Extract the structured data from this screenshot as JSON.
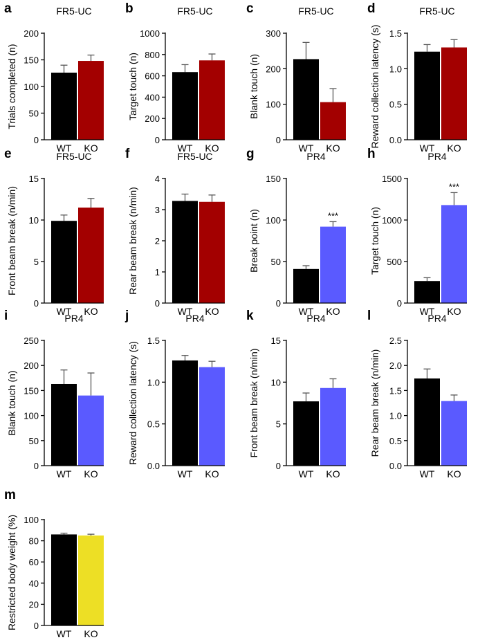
{
  "figure": {
    "colors": {
      "wt": "#000000",
      "fr5_ko": "#a30000",
      "pr4_ko": "#5a5aff",
      "weight_ko": "#eddf25",
      "axis": "#000000"
    },
    "significance_marker": "***"
  },
  "chart_data": [
    {
      "id": "a",
      "letter": "a",
      "type": "bar",
      "title": "FR5-UC",
      "ylabel": "Trials completed (n)",
      "categories": [
        "WT",
        "KO"
      ],
      "values": [
        126,
        148
      ],
      "errors": [
        14,
        11
      ],
      "ylim": [
        0,
        200
      ],
      "yticks": [
        0,
        50,
        100,
        150,
        200
      ],
      "significance": [
        "",
        ""
      ],
      "colors": [
        "#000000",
        "#a30000"
      ]
    },
    {
      "id": "b",
      "letter": "b",
      "type": "bar",
      "title": "FR5-UC",
      "ylabel": "Target touch (n)",
      "categories": [
        "WT",
        "KO"
      ],
      "values": [
        635,
        745
      ],
      "errors": [
        70,
        60
      ],
      "ylim": [
        0,
        1000
      ],
      "yticks": [
        0,
        200,
        400,
        600,
        800,
        1000
      ],
      "significance": [
        "",
        ""
      ],
      "colors": [
        "#000000",
        "#a30000"
      ]
    },
    {
      "id": "c",
      "letter": "c",
      "type": "bar",
      "title": "FR5-UC",
      "ylabel": "Blank touch (n)",
      "categories": [
        "WT",
        "KO"
      ],
      "values": [
        227,
        106
      ],
      "errors": [
        47,
        38
      ],
      "ylim": [
        0,
        300
      ],
      "yticks": [
        0,
        100,
        200,
        300
      ],
      "significance": [
        "",
        ""
      ],
      "colors": [
        "#000000",
        "#a30000"
      ]
    },
    {
      "id": "d",
      "letter": "d",
      "type": "bar",
      "title": "FR5-UC",
      "ylabel": "Reward collection latency (s)",
      "categories": [
        "WT",
        "KO"
      ],
      "values": [
        1.24,
        1.3
      ],
      "errors": [
        0.1,
        0.11
      ],
      "ylim": [
        0,
        1.5
      ],
      "yticks": [
        0,
        0.5,
        1.0,
        1.5
      ],
      "significance": [
        "",
        ""
      ],
      "colors": [
        "#000000",
        "#a30000"
      ]
    },
    {
      "id": "e",
      "letter": "e",
      "type": "bar",
      "title": "FR5-UC",
      "ylabel": "Front beam break (n/min)",
      "categories": [
        "WT",
        "KO"
      ],
      "values": [
        9.9,
        11.5
      ],
      "errors": [
        0.7,
        1.1
      ],
      "ylim": [
        0,
        15
      ],
      "yticks": [
        0,
        5,
        10,
        15
      ],
      "significance": [
        "",
        ""
      ],
      "colors": [
        "#000000",
        "#a30000"
      ]
    },
    {
      "id": "f",
      "letter": "f",
      "type": "bar",
      "title": "FR5-UC",
      "ylabel": "Rear beam break (n/min)",
      "categories": [
        "WT",
        "KO"
      ],
      "values": [
        3.28,
        3.25
      ],
      "errors": [
        0.22,
        0.22
      ],
      "ylim": [
        0,
        4
      ],
      "yticks": [
        0,
        1,
        2,
        3,
        4
      ],
      "significance": [
        "",
        ""
      ],
      "colors": [
        "#000000",
        "#a30000"
      ]
    },
    {
      "id": "g",
      "letter": "g",
      "type": "bar",
      "title": "PR4",
      "ylabel": "Break point (n)",
      "categories": [
        "WT",
        "KO"
      ],
      "values": [
        41,
        92
      ],
      "errors": [
        4,
        6
      ],
      "ylim": [
        0,
        150
      ],
      "yticks": [
        0,
        50,
        100,
        150
      ],
      "significance": [
        "",
        "***"
      ],
      "colors": [
        "#000000",
        "#5a5aff"
      ]
    },
    {
      "id": "h",
      "letter": "h",
      "type": "bar",
      "title": "PR4",
      "ylabel": "Target touch (n)",
      "categories": [
        "WT",
        "KO"
      ],
      "values": [
        265,
        1180
      ],
      "errors": [
        40,
        150
      ],
      "ylim": [
        0,
        1500
      ],
      "yticks": [
        0,
        500,
        1000,
        1500
      ],
      "significance": [
        "",
        "***"
      ],
      "colors": [
        "#000000",
        "#5a5aff"
      ]
    },
    {
      "id": "i",
      "letter": "i",
      "type": "bar",
      "title": "PR4",
      "ylabel": "Blank touch (n)",
      "categories": [
        "WT",
        "KO"
      ],
      "values": [
        163,
        140
      ],
      "errors": [
        28,
        45
      ],
      "ylim": [
        0,
        250
      ],
      "yticks": [
        0,
        50,
        100,
        150,
        200,
        250
      ],
      "significance": [
        "",
        ""
      ],
      "colors": [
        "#000000",
        "#5a5aff"
      ]
    },
    {
      "id": "j",
      "letter": "j",
      "type": "bar",
      "title": "PR4",
      "ylabel": "Reward collection latency (s)",
      "categories": [
        "WT",
        "KO"
      ],
      "values": [
        1.26,
        1.18
      ],
      "errors": [
        0.06,
        0.07
      ],
      "ylim": [
        0,
        1.5
      ],
      "yticks": [
        0,
        0.5,
        1.0,
        1.5
      ],
      "significance": [
        "",
        ""
      ],
      "colors": [
        "#000000",
        "#5a5aff"
      ]
    },
    {
      "id": "k",
      "letter": "k",
      "type": "bar",
      "title": "PR4",
      "ylabel": "Front beam break (n/min)",
      "categories": [
        "WT",
        "KO"
      ],
      "values": [
        7.7,
        9.3
      ],
      "errors": [
        1.0,
        1.1
      ],
      "ylim": [
        0,
        15
      ],
      "yticks": [
        0,
        5,
        10,
        15
      ],
      "significance": [
        "",
        ""
      ],
      "colors": [
        "#000000",
        "#5a5aff"
      ]
    },
    {
      "id": "l",
      "letter": "l",
      "type": "bar",
      "title": "PR4",
      "ylabel": "Rear beam break (n/min)",
      "categories": [
        "WT",
        "KO"
      ],
      "values": [
        1.74,
        1.29
      ],
      "errors": [
        0.19,
        0.12
      ],
      "ylim": [
        0,
        2.5
      ],
      "yticks": [
        0,
        0.5,
        1.0,
        1.5,
        2.0,
        2.5
      ],
      "significance": [
        "",
        ""
      ],
      "colors": [
        "#000000",
        "#5a5aff"
      ]
    },
    {
      "id": "m",
      "letter": "m",
      "type": "bar",
      "title": "",
      "ylabel": "Restricted body weight (%)",
      "categories": [
        "WT",
        "KO"
      ],
      "values": [
        86,
        85
      ],
      "errors": [
        1.2,
        1.2
      ],
      "ylim": [
        0,
        100
      ],
      "yticks": [
        0,
        20,
        40,
        60,
        80,
        100
      ],
      "significance": [
        "",
        ""
      ],
      "colors": [
        "#000000",
        "#eddf25"
      ]
    }
  ]
}
